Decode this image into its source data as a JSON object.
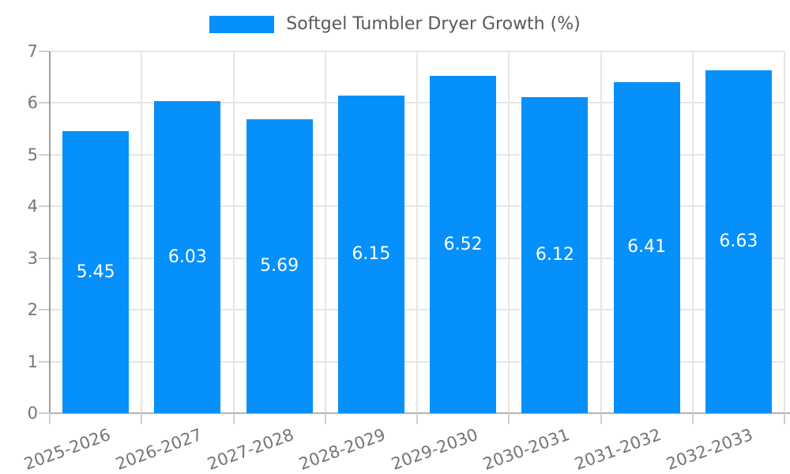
{
  "chart_data": {
    "type": "bar",
    "title": "Softgel Tumbler Dryer Growth (%)",
    "legend": {
      "label": "Softgel Tumbler Dryer Growth (%)",
      "position": "top",
      "color": "#0590fb"
    },
    "categories": [
      "2025-2026",
      "2026-2027",
      "2027-2028",
      "2028-2029",
      "2029-2030",
      "2030-2031",
      "2031-2032",
      "2032-2033"
    ],
    "series": [
      {
        "name": "Softgel Tumbler Dryer Growth (%)",
        "values": [
          5.45,
          6.03,
          5.69,
          6.15,
          6.52,
          6.12,
          6.41,
          6.63
        ],
        "value_labels": [
          "5.45",
          "6.03",
          "5.69",
          "6.15",
          "6.52",
          "6.12",
          "6.41",
          "6.63"
        ]
      }
    ],
    "xlabel": "",
    "ylabel": "",
    "ylim": [
      0,
      7
    ],
    "yticks": [
      0,
      1,
      2,
      3,
      4,
      5,
      6,
      7
    ],
    "grid": true,
    "colors": {
      "bar": "#0590fb",
      "value_label": "#ffffff",
      "tick_label": "#757575",
      "legend_text": "#58595b",
      "gridline": "#e6e6e6",
      "y_axis_line": "#9e9e9e",
      "x_axis_line": "#b3b3b3",
      "tick_mark": "#cfcfcf",
      "background": "#ffffff"
    }
  }
}
